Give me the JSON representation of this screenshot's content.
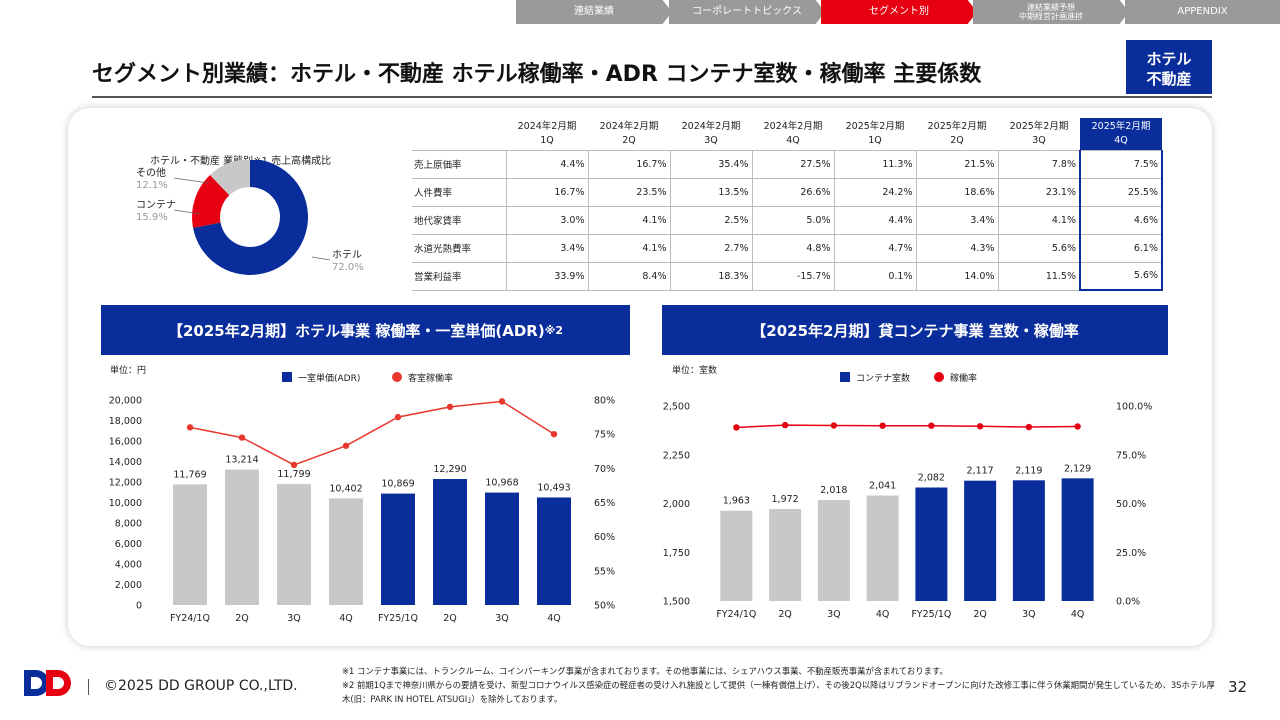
{
  "nav": {
    "tabs": [
      {
        "label": "連結業績",
        "active": false
      },
      {
        "label": "コーポレートトピックス",
        "active": false
      },
      {
        "label": "セグメント別",
        "active": true
      },
      {
        "label": "連結業績予想\n中期経営計画進捗",
        "active": false
      },
      {
        "label": "APPENDIX",
        "active": false
      }
    ]
  },
  "header": {
    "title": "セグメント別業績：ホテル・不動産 ホテル稼働率・ADR コンテナ室数・稼働率 主要係数",
    "badge_line1": "ホテル",
    "badge_line2": "不動産"
  },
  "colors": {
    "navy": "#0a2d9c",
    "red": "#e60012",
    "gray": "#c8c8c8",
    "nav_gray": "#9a9a9a"
  },
  "pie": {
    "title": "ホテル・不動産 業態別※1 売上高構成比",
    "slices": [
      {
        "name": "ホテル",
        "pct_label": "72.0%",
        "value": 72.0,
        "color": "#0a2d9c"
      },
      {
        "name": "コンテナ",
        "pct_label": "15.9%",
        "value": 15.9,
        "color": "#e60012"
      },
      {
        "name": "その他",
        "pct_label": "12.1%",
        "value": 12.1,
        "color": "#c8c8c8"
      }
    ]
  },
  "coef_table": {
    "columns": [
      {
        "line1": "2024年2月期",
        "line2": "1Q"
      },
      {
        "line1": "2024年2月期",
        "line2": "2Q"
      },
      {
        "line1": "2024年2月期",
        "line2": "3Q"
      },
      {
        "line1": "2024年2月期",
        "line2": "4Q"
      },
      {
        "line1": "2025年2月期",
        "line2": "1Q"
      },
      {
        "line1": "2025年2月期",
        "line2": "2Q"
      },
      {
        "line1": "2025年2月期",
        "line2": "3Q"
      },
      {
        "line1": "2025年2月期",
        "line2": "4Q"
      }
    ],
    "rows": [
      {
        "label": "売上原価率",
        "values": [
          "4.4%",
          "16.7%",
          "35.4%",
          "27.5%",
          "11.3%",
          "21.5%",
          "7.8%",
          "7.5%"
        ]
      },
      {
        "label": "人件費率",
        "values": [
          "16.7%",
          "23.5%",
          "13.5%",
          "26.6%",
          "24.2%",
          "18.6%",
          "23.1%",
          "25.5%"
        ]
      },
      {
        "label": "地代家賃率",
        "values": [
          "3.0%",
          "4.1%",
          "2.5%",
          "5.0%",
          "4.4%",
          "3.4%",
          "4.1%",
          "4.6%"
        ]
      },
      {
        "label": "水道光熱費率",
        "values": [
          "3.4%",
          "4.1%",
          "2.7%",
          "4.8%",
          "4.7%",
          "4.3%",
          "5.6%",
          "6.1%"
        ]
      },
      {
        "label": "営業利益率",
        "values": [
          "33.9%",
          "8.4%",
          "18.3%",
          "-15.7%",
          "0.1%",
          "14.0%",
          "11.5%",
          "5.6%"
        ]
      }
    ]
  },
  "sections": {
    "hotel_head": "【2025年2月期】ホテル事業 稼働率・一室単価(ADR)",
    "hotel_head_note": "※2",
    "container_head": "【2025年2月期】貸コンテナ事業 室数・稼働率"
  },
  "chart_data": [
    {
      "type": "bar",
      "unit_label": "単位：円",
      "categories": [
        "FY24/1Q",
        "2Q",
        "3Q",
        "4Q",
        "FY25/1Q",
        "2Q",
        "3Q",
        "4Q"
      ],
      "series": [
        {
          "name": "一室単価(ADR)",
          "kind": "bar",
          "axis": "left",
          "values": [
            11769,
            13214,
            11799,
            10402,
            10869,
            12290,
            10968,
            10493
          ],
          "labels": [
            "11,769",
            "13,214",
            "11,799",
            "10,402",
            "10,869",
            "12,290",
            "10,968",
            "10,493"
          ]
        },
        {
          "name": "客室稼働率",
          "kind": "line",
          "axis": "right",
          "values": [
            76.0,
            74.5,
            70.5,
            73.3,
            77.5,
            79.0,
            79.8,
            75.0
          ]
        }
      ],
      "bar_colors": [
        "#c8c8c8",
        "#c8c8c8",
        "#c8c8c8",
        "#c8c8c8",
        "#0a2d9c",
        "#0a2d9c",
        "#0a2d9c",
        "#0a2d9c"
      ],
      "line_color": "#e8382e",
      "ylim_left": [
        0,
        20000
      ],
      "yticks_left": [
        "0",
        "2,000",
        "4,000",
        "6,000",
        "8,000",
        "10,000",
        "12,000",
        "14,000",
        "16,000",
        "18,000",
        "20,000"
      ],
      "ylim_right": [
        50,
        80
      ],
      "yticks_right": [
        "50%",
        "55%",
        "60%",
        "65%",
        "70%",
        "75%",
        "80%"
      ],
      "legend": "top-center"
    },
    {
      "type": "bar",
      "unit_label": "単位：室数",
      "categories": [
        "FY24/1Q",
        "2Q",
        "3Q",
        "4Q",
        "FY25/1Q",
        "2Q",
        "3Q",
        "4Q"
      ],
      "series": [
        {
          "name": "コンテナ室数",
          "kind": "bar",
          "axis": "left",
          "values": [
            1963,
            1972,
            2018,
            2041,
            2082,
            2117,
            2119,
            2129
          ],
          "labels": [
            "1,963",
            "1,972",
            "2,018",
            "2,041",
            "2,082",
            "2,117",
            "2,119",
            "2,129"
          ]
        },
        {
          "name": "稼働率",
          "kind": "line",
          "axis": "right",
          "values": [
            89.0,
            90.2,
            90.0,
            89.9,
            89.9,
            89.6,
            89.2,
            89.5
          ]
        }
      ],
      "bar_colors": [
        "#c8c8c8",
        "#c8c8c8",
        "#c8c8c8",
        "#c8c8c8",
        "#0a2d9c",
        "#0a2d9c",
        "#0a2d9c",
        "#0a2d9c"
      ],
      "line_color": "#e60012",
      "ylim_left": [
        1500,
        2500
      ],
      "yticks_left": [
        "1,500",
        "1,750",
        "2,000",
        "2,250",
        "2,500"
      ],
      "ylim_right": [
        0,
        100
      ],
      "yticks_right": [
        "0.0%",
        "25.0%",
        "50.0%",
        "75.0%",
        "100.0%"
      ],
      "legend": "top-center"
    }
  ],
  "footer": {
    "copyright": "©2025 DD GROUP CO.,LTD.",
    "note1": "※1 コンテナ事業には、トランクルーム、コインパーキング事業が含まれております。その他事業には、シェアハウス事業、不動産販売事業が含まれております。",
    "note2": "※2 前期1Qまで神奈川県からの要請を受け、新型コロナウイルス感染症の軽症者の受け入れ施設として提供（一棟有償借上げ）、その後2Q以降はリブランドオープンに向けた改修工事に伴う休業期間が発生しているため、3Sホテル厚木(旧：PARK IN HOTEL ATSUGI」）を除外しております。",
    "page": "32"
  }
}
